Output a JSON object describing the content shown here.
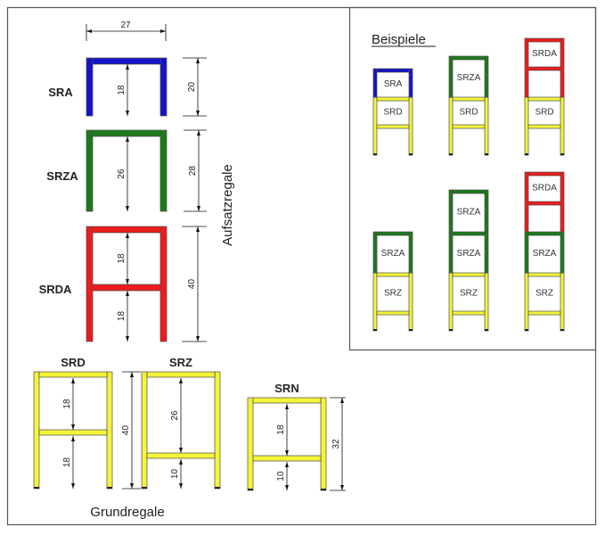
{
  "colors": {
    "SRA": "#1414c8",
    "SRZA": "#1c7a1c",
    "SRDA": "#ee1c1c",
    "base": "#f4f43a",
    "outline": "#4a4a4a"
  },
  "aufsatzregale": {
    "title": "Aufsatzregale",
    "width_dim": "27",
    "items": [
      {
        "label": "SRA",
        "inner": [
          "18"
        ],
        "outer": "20"
      },
      {
        "label": "SRZA",
        "inner": [
          "26"
        ],
        "outer": "28"
      },
      {
        "label": "SRDA",
        "inner": [
          "18",
          "18"
        ],
        "outer": "40"
      }
    ]
  },
  "grundregale": {
    "title": "Grundregale",
    "shared_outer": "40",
    "items": [
      {
        "label": "SRD",
        "inner": [
          "18",
          "18"
        ]
      },
      {
        "label": "SRZ",
        "inner": [
          "26",
          "10"
        ]
      },
      {
        "label": "SRN",
        "inner": [
          "18",
          "10"
        ],
        "outer": "32"
      }
    ]
  },
  "beispiele": {
    "title": "Beispiele",
    "stacks": [
      [
        "SRD",
        "SRA"
      ],
      [
        "SRD",
        "SRZA"
      ],
      [
        "SRD",
        "SRDA"
      ],
      [
        "SRZ",
        "SRZA"
      ],
      [
        "SRZ",
        "SRZA",
        "SRZA"
      ],
      [
        "SRZ",
        "SRZA",
        "SRDA"
      ]
    ]
  }
}
